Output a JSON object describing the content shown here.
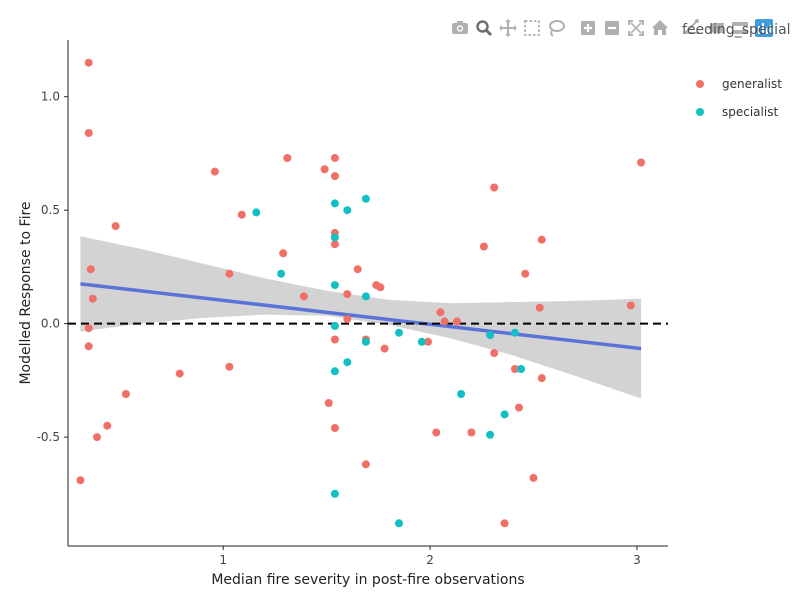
{
  "modebar": {
    "buttons": [
      "camera-icon",
      "zoom-icon",
      "pan-icon",
      "box-select-icon",
      "lasso-icon",
      "zoom-in-icon",
      "zoom-out-icon",
      "autoscale-icon",
      "home-icon",
      "spike-lines-icon",
      "hover-closest-icon",
      "hover-compare-icon",
      "plotly-logo-icon"
    ],
    "icon_color": "#b0b0b0",
    "active_color": "#6e6e6e",
    "logo_color": "#3f9ddb"
  },
  "chart_data": {
    "type": "scatter",
    "title": "",
    "xlabel": "Median fire severity in post-fire observations",
    "ylabel": "Modelled Response to Fire",
    "xlim": [
      0.25,
      3.15
    ],
    "ylim": [
      -0.98,
      1.25
    ],
    "xticks": [
      1,
      2,
      3
    ],
    "xtick_labels": [
      "1",
      "2",
      "3"
    ],
    "yticks": [
      -0.5,
      0.0,
      0.5,
      1.0
    ],
    "ytick_labels": [
      "-0.5",
      "0.0",
      "0.5",
      "1.0"
    ],
    "grid": false,
    "legend": {
      "title": "feeding_special",
      "placement": "right",
      "entries": [
        "generalist",
        "specialist"
      ]
    },
    "reference_line": {
      "y": 0,
      "style": "dashed",
      "color": "#000000"
    },
    "trend_line": {
      "x": [
        0.31,
        3.02
      ],
      "y": [
        0.175,
        -0.11
      ],
      "color": "#5b73d8"
    },
    "confidence_band": {
      "x": [
        0.31,
        0.6,
        0.9,
        1.2,
        1.5,
        1.8,
        2.1,
        2.4,
        2.7,
        3.02
      ],
      "upper": [
        0.385,
        0.33,
        0.265,
        0.2,
        0.145,
        0.105,
        0.09,
        0.095,
        0.1,
        0.11
      ],
      "lower": [
        -0.035,
        0.0,
        0.025,
        0.04,
        0.035,
        -0.005,
        -0.065,
        -0.14,
        -0.23,
        -0.33
      ],
      "color": "#d3d3d3"
    },
    "series": [
      {
        "name": "generalist",
        "color": "#f07068",
        "points": [
          [
            0.35,
            1.15
          ],
          [
            0.35,
            0.84
          ],
          [
            0.36,
            0.24
          ],
          [
            0.37,
            0.11
          ],
          [
            0.35,
            -0.02
          ],
          [
            0.35,
            -0.1
          ],
          [
            0.31,
            -0.69
          ],
          [
            0.39,
            -0.5
          ],
          [
            0.44,
            -0.45
          ],
          [
            0.48,
            0.43
          ],
          [
            0.53,
            -0.31
          ],
          [
            0.79,
            -0.22
          ],
          [
            0.96,
            0.67
          ],
          [
            1.03,
            0.22
          ],
          [
            1.03,
            -0.19
          ],
          [
            1.09,
            0.48
          ],
          [
            1.29,
            0.31
          ],
          [
            1.31,
            0.73
          ],
          [
            1.39,
            0.12
          ],
          [
            1.49,
            0.68
          ],
          [
            1.51,
            -0.35
          ],
          [
            1.54,
            0.73
          ],
          [
            1.54,
            0.65
          ],
          [
            1.54,
            0.4
          ],
          [
            1.54,
            0.35
          ],
          [
            1.54,
            -0.07
          ],
          [
            1.54,
            -0.46
          ],
          [
            1.6,
            0.13
          ],
          [
            1.6,
            0.02
          ],
          [
            1.65,
            0.24
          ],
          [
            1.69,
            -0.07
          ],
          [
            1.69,
            -0.62
          ],
          [
            1.74,
            0.17
          ],
          [
            1.76,
            0.16
          ],
          [
            1.78,
            -0.11
          ],
          [
            1.99,
            -0.08
          ],
          [
            2.03,
            -0.48
          ],
          [
            2.05,
            0.05
          ],
          [
            2.07,
            0.01
          ],
          [
            2.13,
            0.01
          ],
          [
            2.2,
            -0.48
          ],
          [
            2.26,
            0.34
          ],
          [
            2.31,
            0.6
          ],
          [
            2.31,
            -0.13
          ],
          [
            2.36,
            -0.88
          ],
          [
            2.41,
            -0.2
          ],
          [
            2.43,
            -0.37
          ],
          [
            2.46,
            0.22
          ],
          [
            2.5,
            -0.68
          ],
          [
            2.53,
            0.07
          ],
          [
            2.54,
            0.37
          ],
          [
            2.54,
            -0.24
          ],
          [
            2.97,
            0.08
          ],
          [
            3.02,
            0.71
          ]
        ]
      },
      {
        "name": "specialist",
        "color": "#12bfc3",
        "points": [
          [
            1.16,
            0.49
          ],
          [
            1.28,
            0.22
          ],
          [
            1.54,
            0.53
          ],
          [
            1.54,
            0.38
          ],
          [
            1.54,
            0.17
          ],
          [
            1.54,
            -0.01
          ],
          [
            1.54,
            -0.21
          ],
          [
            1.54,
            -0.75
          ],
          [
            1.6,
            0.5
          ],
          [
            1.6,
            -0.17
          ],
          [
            1.69,
            0.55
          ],
          [
            1.69,
            0.12
          ],
          [
            1.69,
            -0.08
          ],
          [
            1.85,
            -0.04
          ],
          [
            1.85,
            -0.88
          ],
          [
            1.96,
            -0.08
          ],
          [
            2.15,
            -0.31
          ],
          [
            2.29,
            -0.05
          ],
          [
            2.29,
            -0.49
          ],
          [
            2.36,
            -0.4
          ],
          [
            2.41,
            -0.04
          ],
          [
            2.44,
            -0.2
          ]
        ]
      }
    ]
  }
}
